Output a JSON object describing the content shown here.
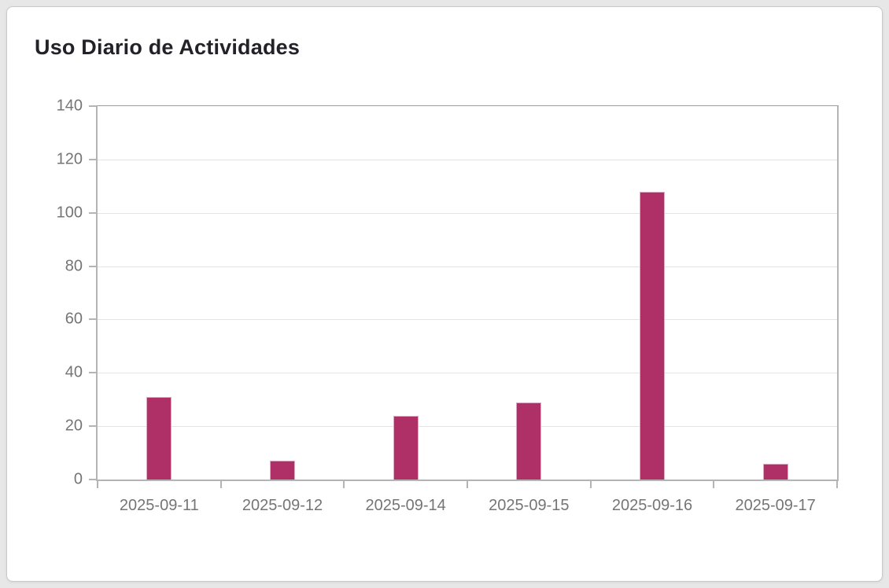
{
  "page": {
    "title": "Uso Diario de Actividades"
  },
  "chart_data": {
    "type": "bar",
    "title": "Uso Diario de Actividades",
    "categories": [
      "2025-09-11",
      "2025-09-12",
      "2025-09-14",
      "2025-09-15",
      "2025-09-16",
      "2025-09-17"
    ],
    "values": [
      31,
      7,
      24,
      29,
      108,
      6
    ],
    "xlabel": "",
    "ylabel": "",
    "ylim": [
      0,
      140
    ],
    "ytick_step": 20,
    "grid": true,
    "legend": false,
    "colors": {
      "bar": "#af3067",
      "bar_edge": "#dcaac5",
      "axis": "#b4b4b4",
      "gridline": "#e4e4e4",
      "tick_label": "#757575",
      "title_text": "#222228",
      "card_background": "#ffffff",
      "page_background": "#e7e7e7"
    }
  }
}
